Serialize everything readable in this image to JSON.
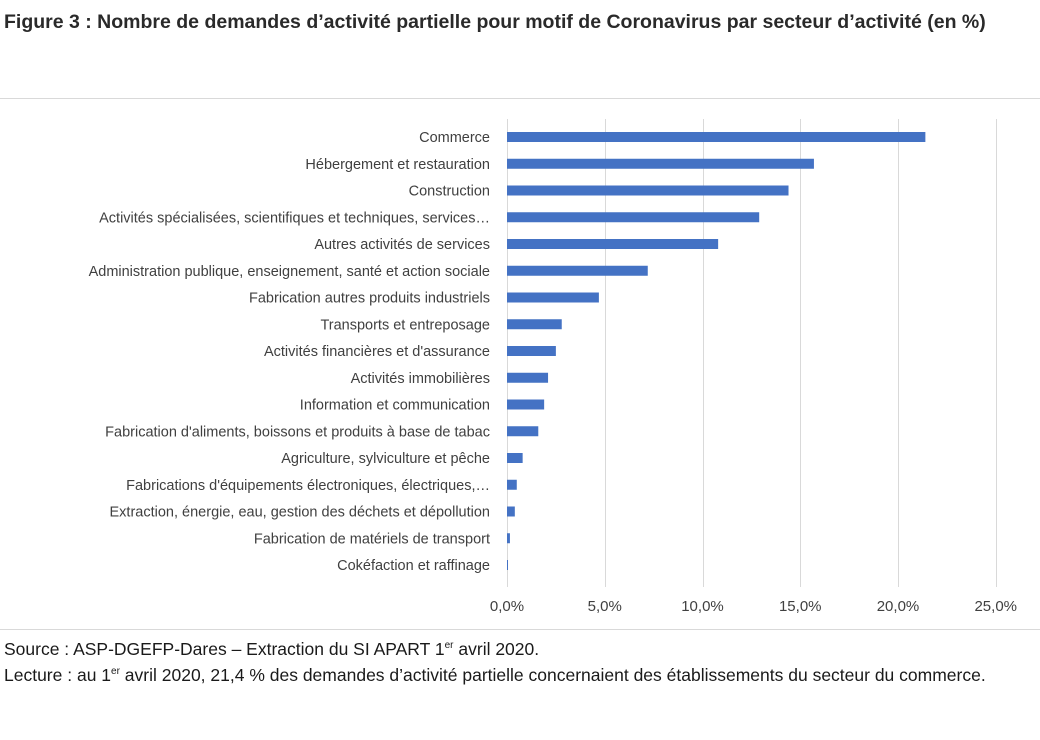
{
  "figure": {
    "title": "Figure 3 : Nombre de demandes d’activité partielle pour motif de Coronavirus par secteur d’activité (en %)",
    "source_prefix": "Source : ASP-DGEFP-Dares – Extraction du SI APART 1",
    "source_sup": "er",
    "source_suffix": " avril 2020.",
    "lecture_prefix": "Lecture : au 1",
    "lecture_sup": "er",
    "lecture_suffix": " avril 2020, 21,4 % des demandes d’activité partielle concernaient des établissements du secteur du commerce."
  },
  "chart_data": {
    "type": "bar",
    "orientation": "horizontal",
    "title": "",
    "xlabel": "",
    "ylabel": "",
    "xlim": [
      0,
      25
    ],
    "grid": "vertical",
    "legend": "none",
    "bar_color": "#4472c4",
    "grid_color": "#d9d9d9",
    "x_tick_labels": [
      "0,0%",
      "5,0%",
      "10,0%",
      "15,0%",
      "20,0%",
      "25,0%"
    ],
    "x_ticks": [
      0,
      5,
      10,
      15,
      20,
      25
    ],
    "categories": [
      "Commerce",
      "Hébergement et restauration",
      "Construction",
      "Activités spécialisées, scientifiques et techniques, services…",
      "Autres activités de services",
      "Administration publique, enseignement, santé et action sociale",
      "Fabrication autres produits industriels",
      "Transports et entreposage",
      "Activités financières et d'assurance",
      "Activités immobilières",
      "Information et communication",
      "Fabrication d'aliments, boissons et produits à base de tabac",
      "Agriculture, sylviculture et pêche",
      "Fabrications d'équipements électroniques, électriques,…",
      "Extraction, énergie, eau, gestion des déchets et dépollution",
      "Fabrication de matériels de transport",
      "Cokéfaction et raffinage"
    ],
    "values": [
      21.4,
      15.7,
      14.4,
      12.9,
      10.8,
      7.2,
      4.7,
      2.8,
      2.5,
      2.1,
      1.9,
      1.6,
      0.8,
      0.5,
      0.4,
      0.15,
      0.05
    ]
  }
}
